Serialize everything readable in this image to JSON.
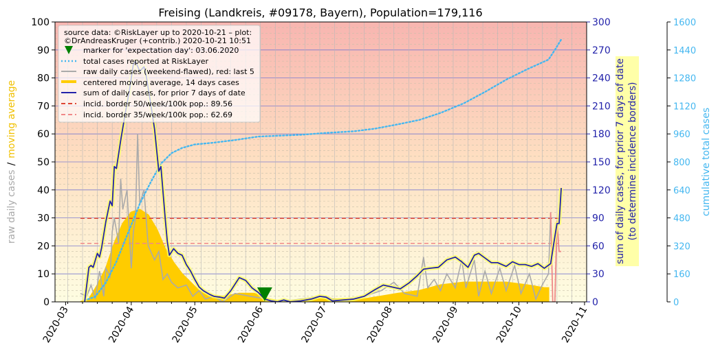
{
  "chart_data": {
    "type": "line",
    "title": "Freising (Landkreis, #09178, Bayern), Population=179,116",
    "ylabel_left_parts": [
      "raw daily cases",
      "/",
      "moving average"
    ],
    "ylabel_right": [
      "sum of daily cases, for prior 7 days of date",
      "(to determine incidence borders)"
    ],
    "ylabel_far_right": "cumulative total cases",
    "x_ticks": [
      "2020-03",
      "2020-04",
      "2020-05",
      "2020-06",
      "2020-07",
      "2020-08",
      "2020-09",
      "2020-10",
      "2020-11"
    ],
    "y_left_ticks": [
      "0",
      "10",
      "20",
      "30",
      "40",
      "50",
      "60",
      "70",
      "80",
      "90",
      "100"
    ],
    "y_right_ticks": [
      "0",
      "30",
      "60",
      "90",
      "120",
      "150",
      "180",
      "210",
      "240",
      "270",
      "300"
    ],
    "y_far_right_ticks": [
      "0",
      "160",
      "320",
      "480",
      "640",
      "800",
      "960",
      "1120",
      "1280",
      "1440",
      "1600"
    ],
    "ylim_left": [
      0,
      100
    ],
    "ylim_right": [
      0,
      300
    ],
    "ylim_far_right": [
      0,
      1600
    ],
    "legend": {
      "placement": "top-left",
      "header": [
        "source data: ©RiskLayer up to 2020-10-21 – plot:",
        "©DrAndreasKruger (+contrib.) 2020-10-21 10:51"
      ],
      "items": [
        "marker for 'expectation day': 03.06.2020",
        "total cases reported at RiskLayer",
        "raw daily cases (weekend-flawed), red: last 5",
        "centered moving average, 14 days cases",
        "sum of daily cases, for prior 7 days of date",
        "incid. border 50/week/100k pop.: 89.56",
        "incid. border 35/week/100k pop.: 62.69"
      ]
    },
    "incidence_border_50": 89.56,
    "incidence_border_35": 62.69,
    "expectation_day": "2020-06-03",
    "series": [
      {
        "name": "sum of daily cases, for prior 7 days of date",
        "axis": "right",
        "color": "#2222aa",
        "points": [
          [
            "2020-03-10",
            0
          ],
          [
            "2020-03-12",
            37
          ],
          [
            "2020-03-13",
            39
          ],
          [
            "2020-03-14",
            37
          ],
          [
            "2020-03-16",
            52
          ],
          [
            "2020-03-17",
            48
          ],
          [
            "2020-03-18",
            58
          ],
          [
            "2020-03-20",
            86
          ],
          [
            "2020-03-22",
            108
          ],
          [
            "2020-03-23",
            103
          ],
          [
            "2020-03-24",
            145
          ],
          [
            "2020-03-25",
            143
          ],
          [
            "2020-03-27",
            173
          ],
          [
            "2020-03-29",
            200
          ],
          [
            "2020-03-31",
            225
          ],
          [
            "2020-04-02",
            255
          ],
          [
            "2020-04-03",
            258
          ],
          [
            "2020-04-05",
            247
          ],
          [
            "2020-04-07",
            252
          ],
          [
            "2020-04-08",
            243
          ],
          [
            "2020-04-10",
            215
          ],
          [
            "2020-04-12",
            185
          ],
          [
            "2020-04-14",
            140
          ],
          [
            "2020-04-15",
            145
          ],
          [
            "2020-04-17",
            90
          ],
          [
            "2020-04-18",
            65
          ],
          [
            "2020-04-19",
            50
          ],
          [
            "2020-04-21",
            57
          ],
          [
            "2020-04-23",
            52
          ],
          [
            "2020-04-25",
            50
          ],
          [
            "2020-04-27",
            40
          ],
          [
            "2020-04-29",
            33
          ],
          [
            "2020-05-01",
            24
          ],
          [
            "2020-05-03",
            16
          ],
          [
            "2020-05-05",
            12
          ],
          [
            "2020-05-08",
            8
          ],
          [
            "2020-05-10",
            6
          ],
          [
            "2020-05-13",
            5
          ],
          [
            "2020-05-15",
            4
          ],
          [
            "2020-05-18",
            12
          ],
          [
            "2020-05-22",
            26
          ],
          [
            "2020-05-25",
            23
          ],
          [
            "2020-05-28",
            15
          ],
          [
            "2020-05-31",
            10
          ],
          [
            "2020-06-03",
            3
          ],
          [
            "2020-06-06",
            1
          ],
          [
            "2020-06-09",
            0
          ],
          [
            "2020-06-12",
            2
          ],
          [
            "2020-06-15",
            0
          ],
          [
            "2020-06-20",
            1
          ],
          [
            "2020-06-25",
            3
          ],
          [
            "2020-06-29",
            6
          ],
          [
            "2020-07-02",
            5
          ],
          [
            "2020-07-05",
            1
          ],
          [
            "2020-07-10",
            2
          ],
          [
            "2020-07-15",
            3
          ],
          [
            "2020-07-20",
            6
          ],
          [
            "2020-07-25",
            13
          ],
          [
            "2020-07-29",
            18
          ],
          [
            "2020-08-02",
            16
          ],
          [
            "2020-08-06",
            14
          ],
          [
            "2020-08-10",
            20
          ],
          [
            "2020-08-14",
            28
          ],
          [
            "2020-08-17",
            35
          ],
          [
            "2020-08-20",
            36
          ],
          [
            "2020-08-24",
            37
          ],
          [
            "2020-08-28",
            45
          ],
          [
            "2020-09-01",
            48
          ],
          [
            "2020-09-04",
            43
          ],
          [
            "2020-09-07",
            37
          ],
          [
            "2020-09-10",
            50
          ],
          [
            "2020-09-12",
            52
          ],
          [
            "2020-09-15",
            47
          ],
          [
            "2020-09-18",
            42
          ],
          [
            "2020-09-21",
            42
          ],
          [
            "2020-09-25",
            38
          ],
          [
            "2020-09-28",
            43
          ],
          [
            "2020-10-01",
            40
          ],
          [
            "2020-10-04",
            40
          ],
          [
            "2020-10-07",
            38
          ],
          [
            "2020-10-10",
            41
          ],
          [
            "2020-10-13",
            36
          ],
          [
            "2020-10-16",
            41
          ],
          [
            "2020-10-18",
            70
          ],
          [
            "2020-10-19",
            84
          ],
          [
            "2020-10-20",
            84
          ],
          [
            "2020-10-21",
            122
          ]
        ]
      },
      {
        "name": "total cases reported at RiskLayer",
        "axis": "far_right",
        "color": "#44b7f0",
        "points": [
          [
            "2020-03-10",
            8
          ],
          [
            "2020-03-15",
            30
          ],
          [
            "2020-03-20",
            110
          ],
          [
            "2020-03-25",
            230
          ],
          [
            "2020-03-31",
            410
          ],
          [
            "2020-04-05",
            560
          ],
          [
            "2020-04-10",
            680
          ],
          [
            "2020-04-15",
            790
          ],
          [
            "2020-04-20",
            850
          ],
          [
            "2020-04-25",
            880
          ],
          [
            "2020-05-01",
            900
          ],
          [
            "2020-05-10",
            910
          ],
          [
            "2020-05-20",
            925
          ],
          [
            "2020-05-31",
            945
          ],
          [
            "2020-06-10",
            950
          ],
          [
            "2020-06-20",
            955
          ],
          [
            "2020-07-01",
            965
          ],
          [
            "2020-07-15",
            975
          ],
          [
            "2020-07-25",
            990
          ],
          [
            "2020-08-05",
            1015
          ],
          [
            "2020-08-15",
            1040
          ],
          [
            "2020-08-25",
            1080
          ],
          [
            "2020-09-05",
            1135
          ],
          [
            "2020-09-15",
            1200
          ],
          [
            "2020-09-25",
            1270
          ],
          [
            "2020-10-05",
            1330
          ],
          [
            "2020-10-15",
            1385
          ],
          [
            "2020-10-18",
            1440
          ],
          [
            "2020-10-21",
            1500
          ]
        ]
      },
      {
        "name": "centered moving average, 14 days cases",
        "axis": "left",
        "color": "#ffcc00",
        "points": [
          [
            "2020-03-08",
            0
          ],
          [
            "2020-03-12",
            1
          ],
          [
            "2020-03-16",
            6
          ],
          [
            "2020-03-20",
            12
          ],
          [
            "2020-03-24",
            21
          ],
          [
            "2020-03-28",
            28
          ],
          [
            "2020-04-01",
            32
          ],
          [
            "2020-04-05",
            33
          ],
          [
            "2020-04-09",
            31
          ],
          [
            "2020-04-13",
            26
          ],
          [
            "2020-04-17",
            19
          ],
          [
            "2020-04-21",
            14
          ],
          [
            "2020-04-25",
            10
          ],
          [
            "2020-04-29",
            7
          ],
          [
            "2020-05-03",
            4
          ],
          [
            "2020-05-08",
            2
          ],
          [
            "2020-05-15",
            2
          ],
          [
            "2020-05-22",
            3
          ],
          [
            "2020-05-29",
            3
          ],
          [
            "2020-06-05",
            1
          ],
          [
            "2020-06-12",
            0
          ],
          [
            "2020-06-25",
            1
          ],
          [
            "2020-07-05",
            1
          ],
          [
            "2020-07-20",
            1
          ],
          [
            "2020-07-28",
            2
          ],
          [
            "2020-08-05",
            3
          ],
          [
            "2020-08-15",
            4
          ],
          [
            "2020-08-25",
            6
          ],
          [
            "2020-09-05",
            7
          ],
          [
            "2020-09-15",
            7
          ],
          [
            "2020-09-25",
            7
          ],
          [
            "2020-10-05",
            6
          ],
          [
            "2020-10-13",
            5
          ],
          [
            "2020-10-15",
            5
          ]
        ]
      },
      {
        "name": "raw daily cases (weekend-flawed), red: last 5",
        "axis": "left",
        "color": "#aaaaaa",
        "points": [
          [
            "2020-03-08",
            3
          ],
          [
            "2020-03-11",
            2
          ],
          [
            "2020-03-13",
            6
          ],
          [
            "2020-03-15",
            1
          ],
          [
            "2020-03-17",
            11
          ],
          [
            "2020-03-19",
            2
          ],
          [
            "2020-03-20",
            12
          ],
          [
            "2020-03-22",
            9
          ],
          [
            "2020-03-23",
            25
          ],
          [
            "2020-03-24",
            30
          ],
          [
            "2020-03-26",
            21
          ],
          [
            "2020-03-27",
            44
          ],
          [
            "2020-03-28",
            33
          ],
          [
            "2020-03-30",
            40
          ],
          [
            "2020-04-01",
            12
          ],
          [
            "2020-04-02",
            25
          ],
          [
            "2020-04-03",
            30
          ],
          [
            "2020-04-04",
            60
          ],
          [
            "2020-04-05",
            35
          ],
          [
            "2020-04-07",
            40
          ],
          [
            "2020-04-09",
            20
          ],
          [
            "2020-04-12",
            15
          ],
          [
            "2020-04-14",
            18
          ],
          [
            "2020-04-16",
            8
          ],
          [
            "2020-04-18",
            10
          ],
          [
            "2020-04-20",
            7
          ],
          [
            "2020-04-23",
            5
          ],
          [
            "2020-04-27",
            6
          ],
          [
            "2020-04-30",
            2
          ],
          [
            "2020-05-03",
            4
          ],
          [
            "2020-05-06",
            1
          ],
          [
            "2020-05-10",
            2
          ],
          [
            "2020-05-14",
            0
          ],
          [
            "2020-05-20",
            3
          ],
          [
            "2020-05-27",
            2
          ],
          [
            "2020-06-04",
            1
          ],
          [
            "2020-06-10",
            0
          ],
          [
            "2020-06-20",
            1
          ],
          [
            "2020-07-01",
            2
          ],
          [
            "2020-07-10",
            0
          ],
          [
            "2020-07-20",
            2
          ],
          [
            "2020-07-28",
            4
          ],
          [
            "2020-08-03",
            7
          ],
          [
            "2020-08-08",
            3
          ],
          [
            "2020-08-14",
            2
          ],
          [
            "2020-08-17",
            16
          ],
          [
            "2020-08-19",
            5
          ],
          [
            "2020-08-22",
            8
          ],
          [
            "2020-08-25",
            4
          ],
          [
            "2020-08-28",
            10
          ],
          [
            "2020-09-01",
            5
          ],
          [
            "2020-09-04",
            15
          ],
          [
            "2020-09-06",
            5
          ],
          [
            "2020-09-10",
            15
          ],
          [
            "2020-09-12",
            2
          ],
          [
            "2020-09-15",
            11
          ],
          [
            "2020-09-18",
            3
          ],
          [
            "2020-09-22",
            12
          ],
          [
            "2020-09-25",
            4
          ],
          [
            "2020-09-29",
            13
          ],
          [
            "2020-10-02",
            3
          ],
          [
            "2020-10-06",
            10
          ],
          [
            "2020-10-09",
            1
          ],
          [
            "2020-10-12",
            6
          ],
          [
            "2020-10-15",
            10
          ],
          [
            "2020-10-16",
            32
          ]
        ]
      },
      {
        "name": "raw daily cases, last 5",
        "axis": "left",
        "color": "#ee8888",
        "points": [
          [
            "2020-10-17",
            0
          ],
          [
            "2020-10-18",
            0
          ],
          [
            "2020-10-19",
            29
          ],
          [
            "2020-10-20",
            18
          ],
          [
            "2020-10-21",
            18
          ]
        ]
      }
    ]
  }
}
